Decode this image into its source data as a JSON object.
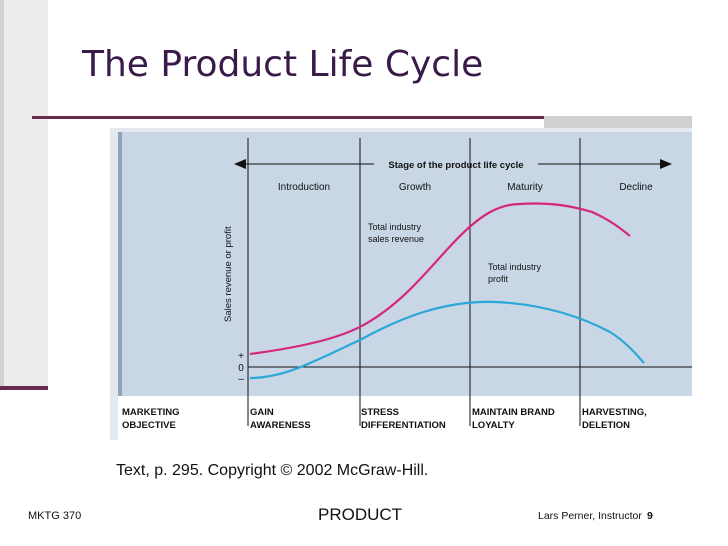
{
  "slide": {
    "title": "The Product Life Cycle",
    "caption": "Text, p. 295.  Copyright © 2002 McGraw-Hill.",
    "footer": {
      "course": "MKTG 370",
      "center": "PRODUCT",
      "instructor": "Lars Perner, Instructor",
      "page": "9"
    }
  },
  "diagram": {
    "heading": "Stage of the product life cycle",
    "y_axis_label": "Sales revenue or profit",
    "axis_ticks": {
      "plus": "+",
      "zero": "0",
      "minus": "–"
    },
    "stages": [
      "Introduction",
      "Growth",
      "Maturity",
      "Decline"
    ],
    "curves": {
      "sales": {
        "label_line1": "Total industry",
        "label_line2": "sales revenue",
        "color": "#d4267a"
      },
      "profit": {
        "label_line1": "Total industry",
        "label_line2": "profit",
        "color": "#2aa8d8"
      }
    },
    "objectives": {
      "row_label": {
        "line1": "MARKETING",
        "line2": "OBJECTIVE"
      },
      "items": [
        {
          "line1": "GAIN",
          "line2": "AWARENESS"
        },
        {
          "line1": "STRESS",
          "line2": "DIFFERENTIATION"
        },
        {
          "line1": "MAINTAIN BRAND",
          "line2": "LOYALTY"
        },
        {
          "line1": "HARVESTING,",
          "line2": "DELETION"
        }
      ]
    },
    "colors": {
      "plot_bg": "#c9d6e6",
      "plot_edge": "#8fa3bd",
      "accent": "#6a2a4e"
    }
  }
}
